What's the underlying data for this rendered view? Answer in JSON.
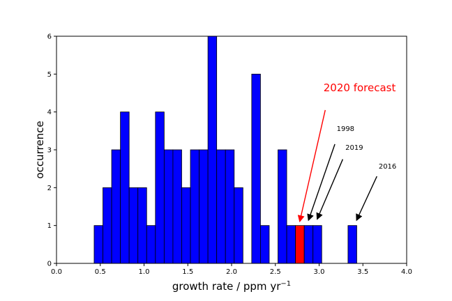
{
  "chart_data": {
    "type": "bar",
    "subtype": "histogram",
    "xlabel": "growth rate / ppm yr",
    "xlabel_superscript": "−1",
    "ylabel": "occurrence",
    "xlim": [
      0.0,
      4.0
    ],
    "ylim": [
      0,
      6
    ],
    "xticks": [
      "0.0",
      "0.5",
      "1.0",
      "1.5",
      "2.0",
      "2.5",
      "3.0",
      "3.5",
      "4.0"
    ],
    "yticks": [
      "0",
      "1",
      "2",
      "3",
      "4",
      "5",
      "6"
    ],
    "grid": false,
    "bin_width": 0.1,
    "bar_color": "#0000ff",
    "highlight_color": "#ff0000",
    "edge_color": "#000000",
    "bins": [
      {
        "x": 0.43,
        "count": 1
      },
      {
        "x": 0.53,
        "count": 2
      },
      {
        "x": 0.63,
        "count": 3
      },
      {
        "x": 0.73,
        "count": 4
      },
      {
        "x": 0.83,
        "count": 2
      },
      {
        "x": 0.93,
        "count": 2
      },
      {
        "x": 1.03,
        "count": 1
      },
      {
        "x": 1.13,
        "count": 4
      },
      {
        "x": 1.23,
        "count": 3
      },
      {
        "x": 1.33,
        "count": 3
      },
      {
        "x": 1.43,
        "count": 2
      },
      {
        "x": 1.53,
        "count": 3
      },
      {
        "x": 1.63,
        "count": 3
      },
      {
        "x": 1.73,
        "count": 6
      },
      {
        "x": 1.83,
        "count": 3
      },
      {
        "x": 1.93,
        "count": 3
      },
      {
        "x": 2.03,
        "count": 2
      },
      {
        "x": 2.23,
        "count": 5
      },
      {
        "x": 2.33,
        "count": 1
      },
      {
        "x": 2.53,
        "count": 3
      },
      {
        "x": 2.63,
        "count": 1
      },
      {
        "x": 2.73,
        "count": 1,
        "highlight": true
      },
      {
        "x": 2.83,
        "count": 1
      },
      {
        "x": 2.93,
        "count": 1
      },
      {
        "x": 3.33,
        "count": 1
      }
    ],
    "annotations": [
      {
        "text": "2020 forecast",
        "color": "#ff0000",
        "text_x": 3.05,
        "text_y": 4.55,
        "arrow_from": [
          3.07,
          4.05
        ],
        "arrow_to": [
          2.78,
          1.12
        ]
      },
      {
        "text": "1998",
        "color": "#000000",
        "text_x": 3.2,
        "text_y": 3.5,
        "arrow_from": [
          3.18,
          3.15
        ],
        "arrow_to": [
          2.88,
          1.15
        ]
      },
      {
        "text": "2019",
        "color": "#000000",
        "text_x": 3.3,
        "text_y": 3.0,
        "arrow_from": [
          3.27,
          2.75
        ],
        "arrow_to": [
          2.98,
          1.18
        ]
      },
      {
        "text": "2016",
        "color": "#000000",
        "text_x": 3.68,
        "text_y": 2.5,
        "arrow_from": [
          3.66,
          2.3
        ],
        "arrow_to": [
          3.43,
          1.15
        ]
      }
    ]
  }
}
